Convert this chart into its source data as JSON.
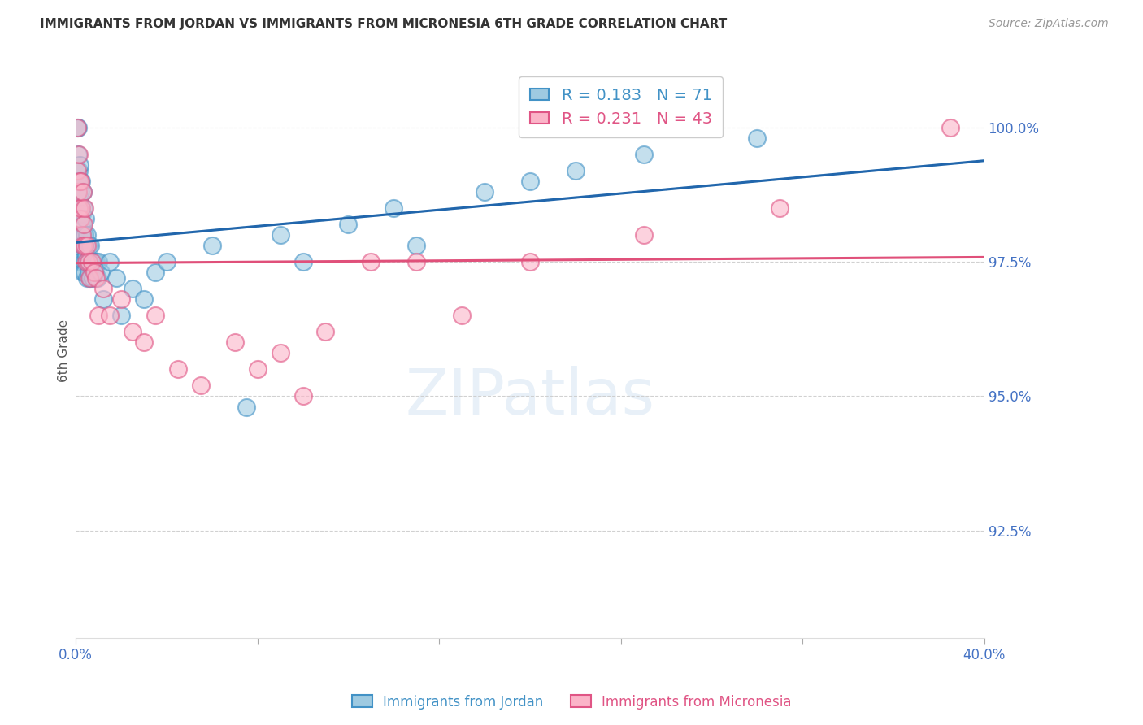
{
  "title": "IMMIGRANTS FROM JORDAN VS IMMIGRANTS FROM MICRONESIA 6TH GRADE CORRELATION CHART",
  "source": "Source: ZipAtlas.com",
  "ylabel": "6th Grade",
  "y_ticks": [
    92.5,
    95.0,
    97.5,
    100.0
  ],
  "y_tick_labels": [
    "92.5%",
    "95.0%",
    "97.5%",
    "100.0%"
  ],
  "x_min": 0.0,
  "x_max": 40.0,
  "y_min": 90.5,
  "y_max": 101.2,
  "jordan_color": "#6baed6",
  "jordan_face_color": "#9ecae1",
  "jordan_edge_color": "#4292c6",
  "micronesia_color": "#fb6eb0",
  "micronesia_face_color": "#fbb4c8",
  "micronesia_edge_color": "#e05585",
  "jordan_R": 0.183,
  "jordan_N": 71,
  "micronesia_R": 0.231,
  "micronesia_N": 43,
  "jordan_trend_color": "#2166ac",
  "jordan_trend_dash_color": "#9ecae1",
  "micronesia_trend_color": "#e0507a",
  "background_color": "#ffffff",
  "grid_color": "#cccccc",
  "tick_color": "#4472c4",
  "title_color": "#333333",
  "legend_jordan_label": "Immigrants from Jordan",
  "legend_micronesia_label": "Immigrants from Micronesia",
  "jordan_x": [
    0.03,
    0.05,
    0.07,
    0.08,
    0.1,
    0.1,
    0.12,
    0.13,
    0.15,
    0.15,
    0.17,
    0.18,
    0.2,
    0.2,
    0.22,
    0.23,
    0.25,
    0.25,
    0.27,
    0.28,
    0.3,
    0.3,
    0.3,
    0.32,
    0.33,
    0.35,
    0.35,
    0.37,
    0.38,
    0.4,
    0.4,
    0.42,
    0.43,
    0.45,
    0.48,
    0.5,
    0.5,
    0.52,
    0.55,
    0.58,
    0.6,
    0.63,
    0.65,
    0.7,
    0.75,
    0.8,
    0.85,
    0.9,
    0.95,
    1.0,
    1.1,
    1.2,
    1.5,
    1.8,
    2.0,
    2.5,
    3.0,
    3.5,
    4.0,
    6.0,
    7.5,
    9.0,
    10.0,
    12.0,
    14.0,
    15.0,
    18.0,
    20.0,
    22.0,
    25.0,
    30.0
  ],
  "jordan_y": [
    98.2,
    99.0,
    97.8,
    100.0,
    99.5,
    100.0,
    98.5,
    99.2,
    98.3,
    99.0,
    98.7,
    99.3,
    98.0,
    98.8,
    97.5,
    98.5,
    98.2,
    99.0,
    97.8,
    98.4,
    97.5,
    98.0,
    98.8,
    97.3,
    98.2,
    97.8,
    98.5,
    97.5,
    98.0,
    97.3,
    98.0,
    97.8,
    98.3,
    97.6,
    97.2,
    97.5,
    98.0,
    97.5,
    97.8,
    97.3,
    97.5,
    97.2,
    97.8,
    97.4,
    97.2,
    97.5,
    97.3,
    97.5,
    97.2,
    97.5,
    97.3,
    96.8,
    97.5,
    97.2,
    96.5,
    97.0,
    96.8,
    97.3,
    97.5,
    97.8,
    94.8,
    98.0,
    97.5,
    98.2,
    98.5,
    97.8,
    98.8,
    99.0,
    99.2,
    99.5,
    99.8
  ],
  "micronesia_x": [
    0.05,
    0.08,
    0.1,
    0.12,
    0.15,
    0.18,
    0.2,
    0.22,
    0.25,
    0.28,
    0.3,
    0.33,
    0.35,
    0.38,
    0.4,
    0.45,
    0.5,
    0.55,
    0.6,
    0.7,
    0.8,
    0.9,
    1.0,
    1.2,
    1.5,
    2.0,
    2.5,
    3.0,
    3.5,
    4.5,
    5.5,
    7.0,
    8.0,
    9.0,
    10.0,
    11.0,
    13.0,
    15.0,
    17.0,
    20.0,
    25.0,
    31.0,
    38.5
  ],
  "micronesia_y": [
    100.0,
    99.2,
    98.8,
    99.5,
    98.5,
    99.0,
    98.3,
    99.0,
    98.5,
    98.0,
    98.8,
    97.8,
    98.2,
    98.5,
    97.8,
    97.5,
    97.8,
    97.5,
    97.2,
    97.5,
    97.3,
    97.2,
    96.5,
    97.0,
    96.5,
    96.8,
    96.2,
    96.0,
    96.5,
    95.5,
    95.2,
    96.0,
    95.5,
    95.8,
    95.0,
    96.2,
    97.5,
    97.5,
    96.5,
    97.5,
    98.0,
    98.5,
    100.0
  ]
}
